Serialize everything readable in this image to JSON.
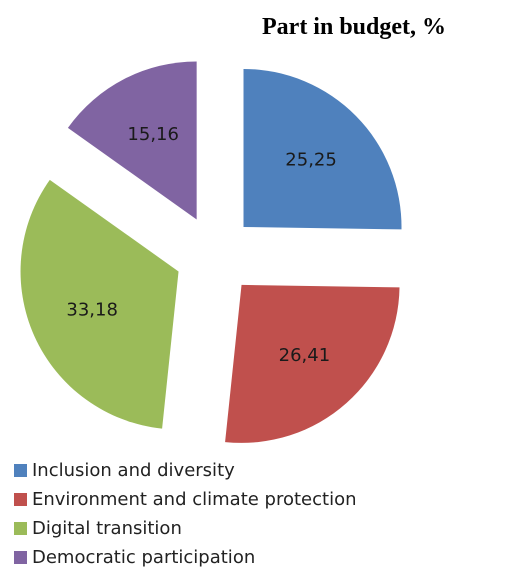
{
  "chart_data": {
    "type": "pie",
    "title": "Part in budget, %",
    "slices": [
      {
        "label": "Inclusion and diversity",
        "value": 25.25,
        "display": "25,25",
        "color": "#4f81bd"
      },
      {
        "label": "Environment and climate protection",
        "value": 26.41,
        "display": "26,41",
        "color": "#c0504d"
      },
      {
        "label": "Digital transition",
        "value": 33.18,
        "display": "33,18",
        "color": "#9bbb59"
      },
      {
        "label": "Democratic participation",
        "value": 15.16,
        "display": "15,16",
        "color": "#8064a2"
      }
    ],
    "exploded": true,
    "legend_position": "bottom-left"
  }
}
